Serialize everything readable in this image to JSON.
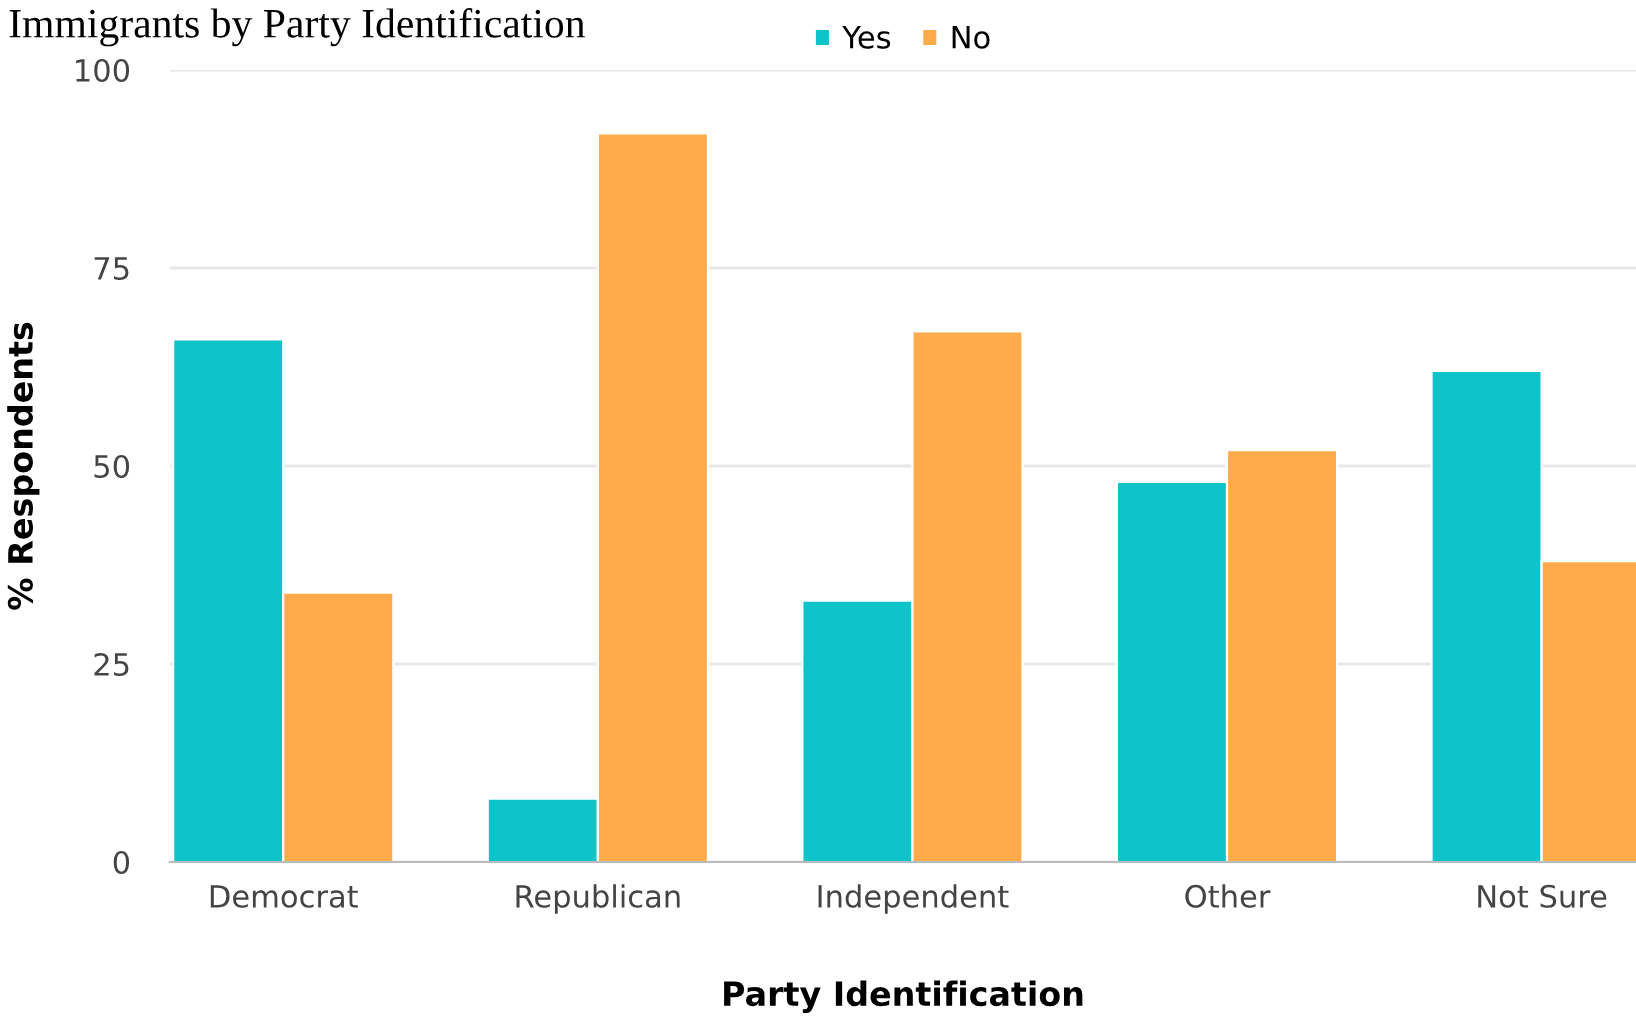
{
  "chart_data": {
    "type": "bar",
    "title": "Immigrants by Party Identification",
    "xlabel": "Party Identification",
    "ylabel": "% Respondents",
    "categories": [
      "Democrat",
      "Republican",
      "Independent",
      "Other",
      "Not Sure"
    ],
    "series": [
      {
        "name": "Yes",
        "color": "#0fc3cb",
        "values": [
          66,
          8,
          33,
          48,
          62
        ]
      },
      {
        "name": "No",
        "color": "#ffab4b",
        "values": [
          34,
          92,
          67,
          52,
          38
        ]
      }
    ],
    "ylim": [
      0,
      100
    ],
    "yticks": [
      0,
      25,
      50,
      75,
      100
    ],
    "grid": "y",
    "legend": "top"
  }
}
